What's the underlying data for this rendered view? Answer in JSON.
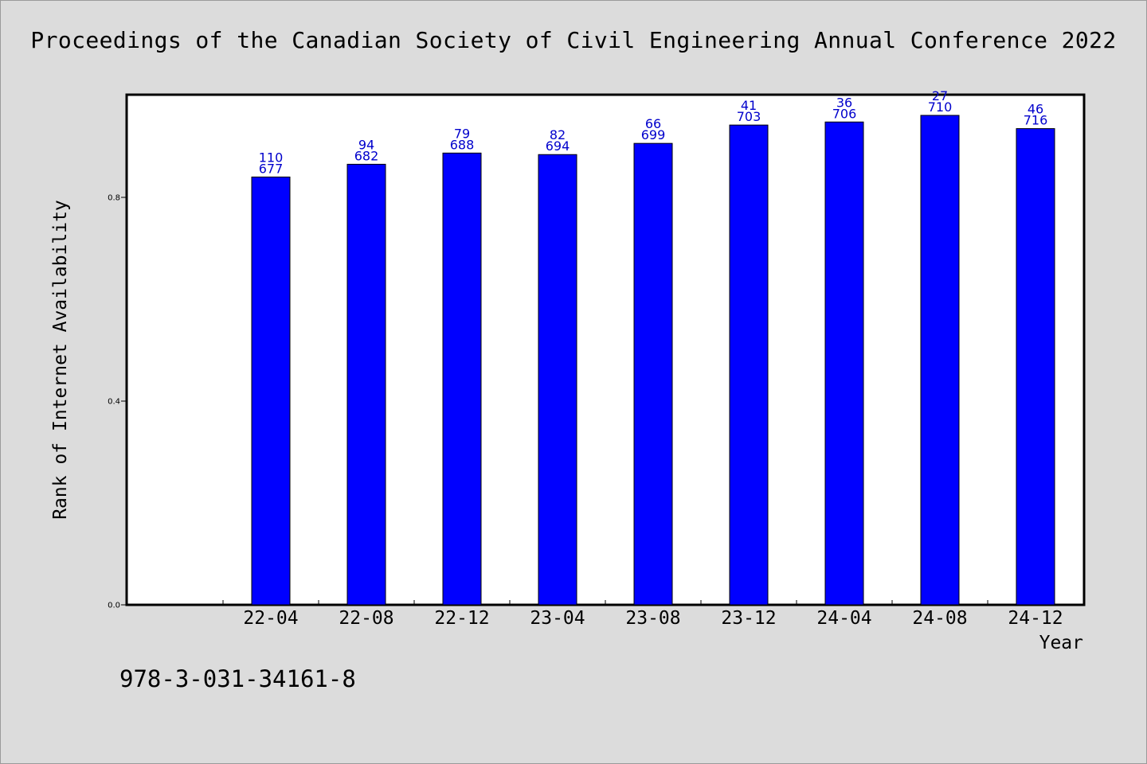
{
  "chart_data": {
    "type": "bar",
    "title": "Proceedings of the Canadian Society of Civil Engineering Annual Conference 2022",
    "xlabel": "Year",
    "ylabel": "Rank of Internet Availability",
    "categories": [
      "22-04",
      "22-08",
      "22-12",
      "23-04",
      "23-08",
      "23-12",
      "24-04",
      "24-08",
      "24-12"
    ],
    "series": [
      {
        "values": [
          0.84,
          0.865,
          0.887,
          0.884,
          0.906,
          0.942,
          0.948,
          0.961,
          0.935
        ],
        "labels_top": [
          "110",
          "94",
          "79",
          "82",
          "66",
          "41",
          "36",
          "27",
          "46"
        ],
        "labels_bottom": [
          "677",
          "682",
          "688",
          "694",
          "699",
          "703",
          "706",
          "710",
          "716"
        ]
      }
    ],
    "y_ticks": [
      "0.0",
      "0.4",
      "0.8"
    ],
    "y_tick_values": [
      0.0,
      0.4,
      0.8
    ],
    "ylim": [
      0,
      1.0
    ],
    "grid": false,
    "colors": {
      "bar": "#0000ff",
      "bar_label": "#0000cc",
      "plot_bg": "#ffffff",
      "page_bg": "#dcdcdc"
    }
  },
  "footer": {
    "isbn": "978-3-031-34161-8"
  }
}
